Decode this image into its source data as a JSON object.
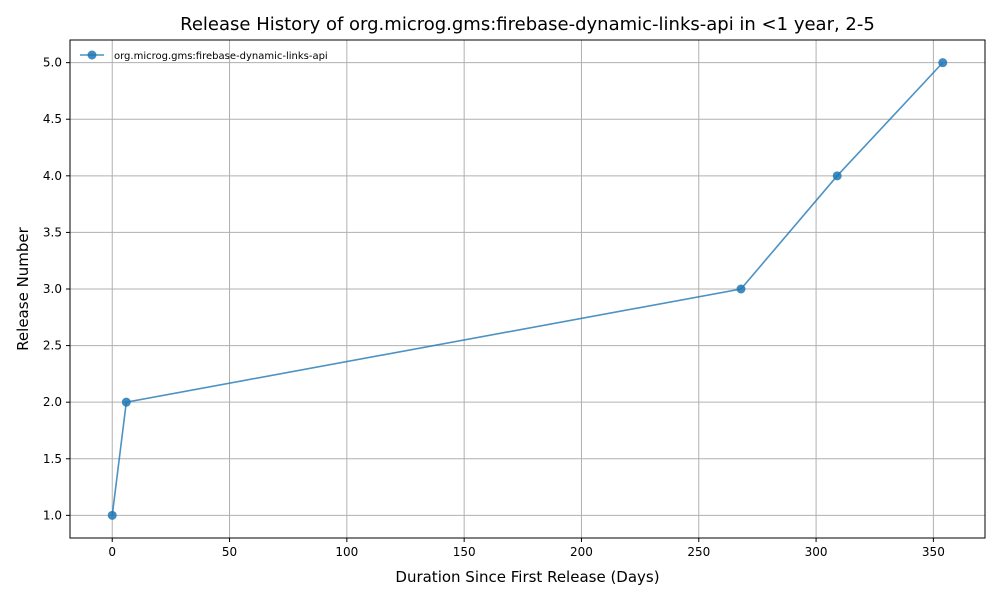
{
  "colors": {
    "series": "#1f77b4",
    "grid": "#b0b0b0",
    "axis": "#000000"
  },
  "chart_data": {
    "type": "line",
    "title": "Release History of org.microg.gms:firebase-dynamic-links-api in <1 year, 2-5",
    "xlabel": "Duration Since First Release (Days)",
    "ylabel": "Release Number",
    "xlim": [
      -18,
      372
    ],
    "ylim": [
      0.8,
      5.2
    ],
    "xticks": [
      0,
      50,
      100,
      150,
      200,
      250,
      300,
      350
    ],
    "yticks": [
      1.0,
      1.5,
      2.0,
      2.5,
      3.0,
      3.5,
      4.0,
      4.5,
      5.0
    ],
    "xtick_labels": [
      "0",
      "50",
      "100",
      "150",
      "200",
      "250",
      "300",
      "350"
    ],
    "ytick_labels": [
      "1.0",
      "1.5",
      "2.0",
      "2.5",
      "3.0",
      "3.5",
      "4.0",
      "4.5",
      "5.0"
    ],
    "grid": true,
    "legend_position": "upper-left",
    "series": [
      {
        "name": "org.microg.gms:firebase-dynamic-links-api",
        "x": [
          0,
          6,
          268,
          309,
          354
        ],
        "y": [
          1,
          2,
          3,
          4,
          5
        ],
        "marker": "circle"
      }
    ]
  }
}
